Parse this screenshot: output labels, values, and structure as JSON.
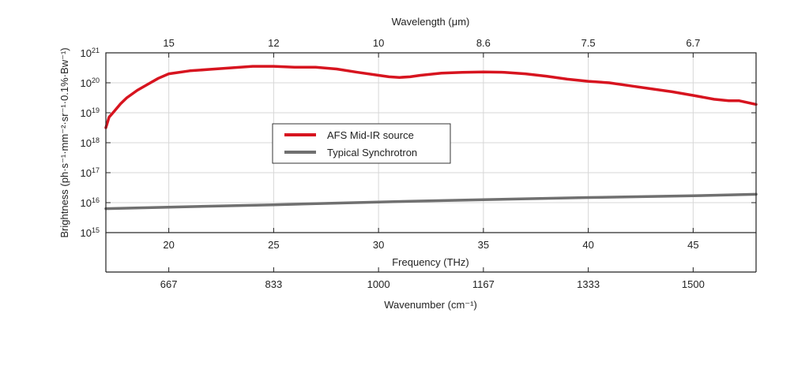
{
  "chart_data": {
    "type": "line",
    "x_range_thz": [
      17,
      48
    ],
    "y_log_range": [
      15,
      21
    ],
    "top_axis": {
      "label": "Wavelength (μm)",
      "ticks": [
        {
          "thz": 20,
          "label": "15"
        },
        {
          "thz": 25,
          "label": "12"
        },
        {
          "thz": 30,
          "label": "10"
        },
        {
          "thz": 35,
          "label": "8.6"
        },
        {
          "thz": 40,
          "label": "7.5"
        },
        {
          "thz": 45,
          "label": "6.7"
        }
      ]
    },
    "bottom_axis": {
      "label": "Frequency (THz)",
      "ticks": [
        {
          "thz": 20,
          "label": "20"
        },
        {
          "thz": 25,
          "label": "25"
        },
        {
          "thz": 30,
          "label": "30"
        },
        {
          "thz": 35,
          "label": "35"
        },
        {
          "thz": 40,
          "label": "40"
        },
        {
          "thz": 45,
          "label": "45"
        }
      ]
    },
    "wavenumber_axis": {
      "label": "Wavenumber (cm⁻¹)",
      "ticks": [
        {
          "thz": 20,
          "label": "667"
        },
        {
          "thz": 25,
          "label": "833"
        },
        {
          "thz": 30,
          "label": "1000"
        },
        {
          "thz": 35,
          "label": "1167"
        },
        {
          "thz": 40,
          "label": "1333"
        },
        {
          "thz": 45,
          "label": "1500"
        }
      ]
    },
    "y_axis": {
      "label": "Brightness (ph·s⁻¹·mm⁻²·sr⁻¹·0.1%·Bw⁻¹)",
      "ticks": [
        {
          "exp": 15,
          "base": "10",
          "sup": "15"
        },
        {
          "exp": 16,
          "base": "10",
          "sup": "16"
        },
        {
          "exp": 17,
          "base": "10",
          "sup": "17"
        },
        {
          "exp": 18,
          "base": "10",
          "sup": "18"
        },
        {
          "exp": 19,
          "base": "10",
          "sup": "19"
        },
        {
          "exp": 20,
          "base": "10",
          "sup": "20"
        },
        {
          "exp": 21,
          "base": "10",
          "sup": "21"
        }
      ]
    },
    "grid": true,
    "legend_position": "center-left",
    "series": [
      {
        "name": "AFS Mid-IR source",
        "color": "#d7141f",
        "x": [
          17.0,
          17.15,
          17.4,
          17.7,
          18.0,
          18.5,
          19.0,
          19.5,
          20.0,
          21.0,
          22.0,
          23.0,
          24.0,
          25.0,
          26.0,
          27.0,
          28.0,
          29.0,
          30.0,
          30.5,
          31.0,
          31.5,
          32.0,
          33.0,
          34.0,
          35.0,
          36.0,
          37.0,
          38.0,
          39.0,
          40.0,
          41.0,
          42.0,
          43.0,
          44.0,
          45.0,
          46.0,
          46.7,
          47.2,
          48.0
        ],
        "y_log10": [
          18.5,
          18.85,
          19.05,
          19.3,
          19.5,
          19.75,
          19.95,
          20.15,
          20.3,
          20.4,
          20.45,
          20.5,
          20.55,
          20.55,
          20.52,
          20.52,
          20.46,
          20.35,
          20.25,
          20.2,
          20.18,
          20.2,
          20.25,
          20.32,
          20.35,
          20.36,
          20.35,
          20.3,
          20.22,
          20.12,
          20.05,
          20.0,
          19.9,
          19.8,
          19.7,
          19.58,
          19.45,
          19.4,
          19.4,
          19.28
        ]
      },
      {
        "name": "Typical Synchrotron",
        "color": "#707070",
        "x": [
          17.0,
          20.0,
          25.0,
          30.0,
          35.0,
          40.0,
          45.0,
          48.0
        ],
        "y_log10": [
          15.8,
          15.85,
          15.93,
          16.02,
          16.1,
          16.17,
          16.23,
          16.28
        ]
      }
    ]
  }
}
